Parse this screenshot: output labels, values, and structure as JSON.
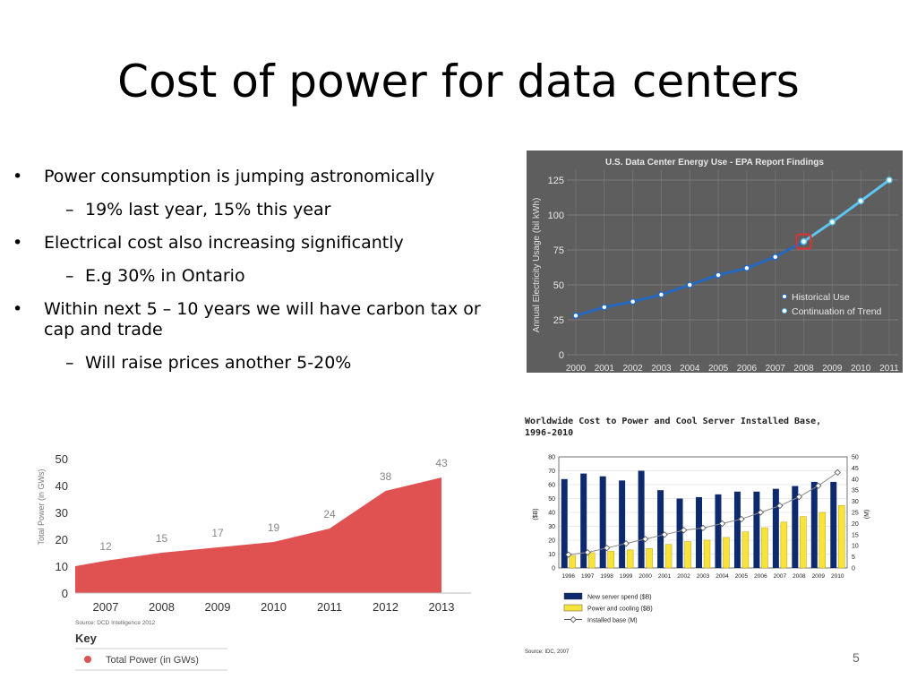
{
  "slide": {
    "title": "Cost of power for data centers",
    "slide_number": "5",
    "bullets": [
      {
        "text": "Power consumption is jumping astronomically",
        "sub": [
          "19% last year, 15% this year"
        ]
      },
      {
        "text": "Electrical cost also increasing significantly",
        "sub": [
          "E.g 30% in Ontario"
        ]
      },
      {
        "text": "Within next 5 – 10 years we will have carbon tax or cap and trade",
        "sub": [
          "Will raise prices another 5-20%"
        ]
      }
    ]
  },
  "chart_data": [
    {
      "type": "line",
      "title": "U.S. Data Center Energy Use - EPA Report Findings",
      "ylabel": "Annual Electricity Usage (bil kWh)",
      "xlabel": "",
      "x": [
        "2000",
        "2001",
        "2002",
        "2003",
        "2004",
        "2005",
        "2006",
        "2007",
        "2008",
        "2009",
        "2010",
        "2011"
      ],
      "yticks": [
        "0",
        "25",
        "50",
        "75",
        "100",
        "125"
      ],
      "ylim": [
        0,
        125
      ],
      "series": [
        {
          "name": "Historical Use",
          "x": [
            "2000",
            "2001",
            "2002",
            "2003",
            "2004",
            "2005",
            "2006",
            "2007",
            "2008"
          ],
          "values": [
            28,
            34,
            38,
            43,
            50,
            57,
            62,
            70,
            81
          ]
        },
        {
          "name": "Continuation of Trend",
          "x": [
            "2008",
            "2009",
            "2010",
            "2011"
          ],
          "values": [
            81,
            95,
            110,
            125
          ]
        }
      ],
      "highlight": "2008",
      "colors": {
        "historical": "#2468c0",
        "trend": "#5ec4f0",
        "highlight": "#e03030",
        "background": "#5e5e5e"
      }
    },
    {
      "type": "area",
      "title": "",
      "ylabel": "Total Power (in GWs)",
      "x": [
        "2007",
        "2008",
        "2009",
        "2010",
        "2011",
        "2012",
        "2013"
      ],
      "values": [
        12,
        15,
        17,
        19,
        24,
        38,
        43
      ],
      "yticks": [
        "0",
        "10",
        "20",
        "30",
        "40",
        "50"
      ],
      "ylim": [
        0,
        50
      ],
      "source": "Source: DCD Intelligence 2012",
      "key_title": "Key",
      "series": [
        {
          "name": "Total Power (in GWs)",
          "values": [
            12,
            15,
            17,
            19,
            24,
            38,
            43
          ]
        }
      ],
      "colors": {
        "fill": "#e05252",
        "dot": "#e05252"
      }
    },
    {
      "type": "bar",
      "title": "Worldwide Cost to Power and Cool Server Installed Base,\n1996-2010",
      "ylabel": "($B)",
      "y2label": "(M)",
      "categories": [
        "1996",
        "1997",
        "1998",
        "1999",
        "2000",
        "2001",
        "2002",
        "2003",
        "2004",
        "2005",
        "2006",
        "2007",
        "2008",
        "2009",
        "2010"
      ],
      "yticks": [
        "0",
        "10",
        "20",
        "30",
        "40",
        "50",
        "60",
        "70",
        "80"
      ],
      "y2ticks": [
        "0",
        "5",
        "10",
        "15",
        "20",
        "25",
        "30",
        "35",
        "40",
        "45",
        "50"
      ],
      "ylim": [
        0,
        80
      ],
      "y2lim": [
        0,
        50
      ],
      "series": [
        {
          "name": "New server spend ($B)",
          "type": "bar",
          "values": [
            64,
            68,
            66,
            63,
            70,
            56,
            50,
            51,
            53,
            55,
            55,
            57,
            59,
            62,
            62
          ]
        },
        {
          "name": "Power and cooling ($B)",
          "type": "bar",
          "values": [
            9,
            11,
            12,
            13,
            14,
            17,
            19,
            20,
            22,
            26,
            29,
            33,
            37,
            40,
            45
          ]
        },
        {
          "name": "Installed base (M)",
          "type": "line",
          "axis": "right",
          "values": [
            6,
            7,
            9,
            11,
            13,
            15,
            17,
            18,
            20,
            22,
            25,
            28,
            32,
            37,
            43
          ]
        }
      ],
      "source": "Source: IDC, 2007",
      "colors": {
        "spend": "#0d2a6e",
        "power": "#f7e33a",
        "installed": "#888888"
      }
    }
  ]
}
